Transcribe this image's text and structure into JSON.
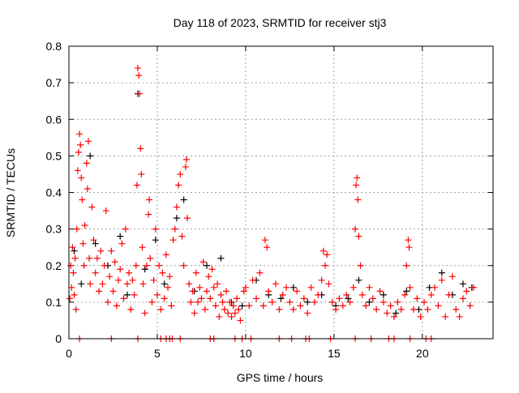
{
  "chart_data": {
    "type": "scatter",
    "title": "Day 118 of 2023, SRMTID for receiver stj3",
    "xlabel": "GPS time / hours",
    "ylabel": "SRMTID / TECUs",
    "xlim": [
      0,
      24
    ],
    "ylim": [
      0,
      0.8
    ],
    "xticks": [
      0,
      5,
      10,
      15,
      20
    ],
    "yticks": [
      0,
      0.1,
      0.2,
      0.3,
      0.4,
      0.5,
      0.6,
      0.7,
      0.8
    ],
    "ytick_labels": [
      "0",
      "0.1",
      "0.2",
      "0.3",
      "0.4",
      "0.5",
      "0.6",
      "0.7",
      "0.8"
    ],
    "grid": true,
    "colors": {
      "primary": "#ff0000",
      "secondary": "#000000"
    },
    "series": [
      {
        "name": "secondary",
        "color": "#000000",
        "points": [
          [
            0.3,
            0.24
          ],
          [
            0.7,
            0.15
          ],
          [
            1.2,
            0.5
          ],
          [
            1.5,
            0.26
          ],
          [
            2.2,
            0.2
          ],
          [
            2.9,
            0.28
          ],
          [
            3.3,
            0.12
          ],
          [
            3.9,
            0.67
          ],
          [
            4.3,
            0.19
          ],
          [
            4.9,
            0.27
          ],
          [
            5.4,
            0.15
          ],
          [
            6.1,
            0.33
          ],
          [
            6.5,
            0.38
          ],
          [
            7.1,
            0.13
          ],
          [
            7.8,
            0.2
          ],
          [
            8.6,
            0.22
          ],
          [
            9.2,
            0.1
          ],
          [
            9.8,
            0.09
          ],
          [
            10.6,
            0.16
          ],
          [
            11.3,
            0.12
          ],
          [
            12.0,
            0.11
          ],
          [
            12.7,
            0.14
          ],
          [
            13.5,
            0.1
          ],
          [
            14.3,
            0.12
          ],
          [
            15.1,
            0.09
          ],
          [
            15.8,
            0.11
          ],
          [
            16.4,
            0.16
          ],
          [
            17.0,
            0.1
          ],
          [
            17.8,
            0.12
          ],
          [
            18.5,
            0.07
          ],
          [
            19.1,
            0.13
          ],
          [
            19.8,
            0.08
          ],
          [
            20.4,
            0.14
          ],
          [
            21.1,
            0.18
          ],
          [
            21.7,
            0.12
          ],
          [
            22.3,
            0.15
          ],
          [
            22.8,
            0.14
          ]
        ]
      },
      {
        "name": "primary",
        "color": "#ff0000",
        "points": [
          [
            0.05,
            0.11
          ],
          [
            0.1,
            0.2
          ],
          [
            0.15,
            0.14
          ],
          [
            0.2,
            0.25
          ],
          [
            0.25,
            0.18
          ],
          [
            0.3,
            0.12
          ],
          [
            0.35,
            0.22
          ],
          [
            0.4,
            0.08
          ],
          [
            0.45,
            0.3
          ],
          [
            0.5,
            0.46
          ],
          [
            0.55,
            0.51
          ],
          [
            0.6,
            0.56
          ],
          [
            0.65,
            0.53
          ],
          [
            0.7,
            0.44
          ],
          [
            0.75,
            0.38
          ],
          [
            0.8,
            0.26
          ],
          [
            0.85,
            0.2
          ],
          [
            0.9,
            0.31
          ],
          [
            1.0,
            0.48
          ],
          [
            1.05,
            0.41
          ],
          [
            1.1,
            0.54
          ],
          [
            1.15,
            0.22
          ],
          [
            1.2,
            0.15
          ],
          [
            1.3,
            0.36
          ],
          [
            1.4,
            0.27
          ],
          [
            1.5,
            0.18
          ],
          [
            1.6,
            0.22
          ],
          [
            1.7,
            0.13
          ],
          [
            1.8,
            0.24
          ],
          [
            1.9,
            0.15
          ],
          [
            2.0,
            0.2
          ],
          [
            2.1,
            0.35
          ],
          [
            2.2,
            0.1
          ],
          [
            2.3,
            0.17
          ],
          [
            2.4,
            0.24
          ],
          [
            2.5,
            0.13
          ],
          [
            2.6,
            0.21
          ],
          [
            2.7,
            0.09
          ],
          [
            2.8,
            0.16
          ],
          [
            2.9,
            0.19
          ],
          [
            3.0,
            0.26
          ],
          [
            3.1,
            0.11
          ],
          [
            3.2,
            0.3
          ],
          [
            3.3,
            0.15
          ],
          [
            3.4,
            0.18
          ],
          [
            3.5,
            0.08
          ],
          [
            3.6,
            0.16
          ],
          [
            3.7,
            0.12
          ],
          [
            3.8,
            0.2
          ],
          [
            3.85,
            0.42
          ],
          [
            3.9,
            0.74
          ],
          [
            3.95,
            0.72
          ],
          [
            4.0,
            0.67
          ],
          [
            4.05,
            0.52
          ],
          [
            4.1,
            0.45
          ],
          [
            4.15,
            0.25
          ],
          [
            4.2,
            0.15
          ],
          [
            4.3,
            0.07
          ],
          [
            4.4,
            0.2
          ],
          [
            4.5,
            0.34
          ],
          [
            4.55,
            0.38
          ],
          [
            4.6,
            0.22
          ],
          [
            4.7,
            0.1
          ],
          [
            4.8,
            0.16
          ],
          [
            4.9,
            0.3
          ],
          [
            5.0,
            0.12
          ],
          [
            5.1,
            0.2
          ],
          [
            5.2,
            0.08
          ],
          [
            5.3,
            0.18
          ],
          [
            5.4,
            0.11
          ],
          [
            5.5,
            0.23
          ],
          [
            5.6,
            0.14
          ],
          [
            5.7,
            0.17
          ],
          [
            5.8,
            0.09
          ],
          [
            5.9,
            0.27
          ],
          [
            6.0,
            0.3
          ],
          [
            6.1,
            0.36
          ],
          [
            6.2,
            0.42
          ],
          [
            6.3,
            0.45
          ],
          [
            6.4,
            0.28
          ],
          [
            6.5,
            0.2
          ],
          [
            6.6,
            0.47
          ],
          [
            6.65,
            0.49
          ],
          [
            6.7,
            0.33
          ],
          [
            6.8,
            0.15
          ],
          [
            6.9,
            0.1
          ],
          [
            7.0,
            0.13
          ],
          [
            7.1,
            0.07
          ],
          [
            7.2,
            0.18
          ],
          [
            7.3,
            0.1
          ],
          [
            7.4,
            0.14
          ],
          [
            7.5,
            0.11
          ],
          [
            7.6,
            0.21
          ],
          [
            7.7,
            0.08
          ],
          [
            7.8,
            0.13
          ],
          [
            7.9,
            0.17
          ],
          [
            8.0,
            0.11
          ],
          [
            8.1,
            0.19
          ],
          [
            8.2,
            0.14
          ],
          [
            8.3,
            0.09
          ],
          [
            8.4,
            0.15
          ],
          [
            8.5,
            0.06
          ],
          [
            8.6,
            0.12
          ],
          [
            8.7,
            0.1
          ],
          [
            8.8,
            0.08
          ],
          [
            8.9,
            0.13
          ],
          [
            9.0,
            0.07
          ],
          [
            9.1,
            0.1
          ],
          [
            9.2,
            0.06
          ],
          [
            9.3,
            0.09
          ],
          [
            9.4,
            0.07
          ],
          [
            9.5,
            0.11
          ],
          [
            9.6,
            0.08
          ],
          [
            9.7,
            0.05
          ],
          [
            9.9,
            0.13
          ],
          [
            10.0,
            0.14
          ],
          [
            10.2,
            0.09
          ],
          [
            10.4,
            0.16
          ],
          [
            10.6,
            0.11
          ],
          [
            10.8,
            0.18
          ],
          [
            11.0,
            0.09
          ],
          [
            11.1,
            0.27
          ],
          [
            11.2,
            0.25
          ],
          [
            11.3,
            0.13
          ],
          [
            11.5,
            0.1
          ],
          [
            11.7,
            0.15
          ],
          [
            11.9,
            0.08
          ],
          [
            12.1,
            0.12
          ],
          [
            12.3,
            0.14
          ],
          [
            12.5,
            0.1
          ],
          [
            12.7,
            0.08
          ],
          [
            12.9,
            0.13
          ],
          [
            13.1,
            0.09
          ],
          [
            13.3,
            0.11
          ],
          [
            13.5,
            0.07
          ],
          [
            13.7,
            0.14
          ],
          [
            13.9,
            0.1
          ],
          [
            14.1,
            0.12
          ],
          [
            14.3,
            0.16
          ],
          [
            14.4,
            0.24
          ],
          [
            14.5,
            0.2
          ],
          [
            14.6,
            0.23
          ],
          [
            14.7,
            0.15
          ],
          [
            14.9,
            0.1
          ],
          [
            15.1,
            0.08
          ],
          [
            15.3,
            0.11
          ],
          [
            15.5,
            0.09
          ],
          [
            15.7,
            0.12
          ],
          [
            15.9,
            0.1
          ],
          [
            16.1,
            0.14
          ],
          [
            16.2,
            0.3
          ],
          [
            16.25,
            0.42
          ],
          [
            16.3,
            0.44
          ],
          [
            16.35,
            0.38
          ],
          [
            16.4,
            0.28
          ],
          [
            16.5,
            0.2
          ],
          [
            16.6,
            0.12
          ],
          [
            16.8,
            0.09
          ],
          [
            17.0,
            0.14
          ],
          [
            17.2,
            0.11
          ],
          [
            17.4,
            0.08
          ],
          [
            17.6,
            0.13
          ],
          [
            17.8,
            0.1
          ],
          [
            18.0,
            0.07
          ],
          [
            18.2,
            0.09
          ],
          [
            18.4,
            0.06
          ],
          [
            18.6,
            0.1
          ],
          [
            18.8,
            0.08
          ],
          [
            19.0,
            0.12
          ],
          [
            19.1,
            0.2
          ],
          [
            19.2,
            0.27
          ],
          [
            19.25,
            0.25
          ],
          [
            19.3,
            0.14
          ],
          [
            19.5,
            0.08
          ],
          [
            19.7,
            0.11
          ],
          [
            19.9,
            0.06
          ],
          [
            20.1,
            0.1
          ],
          [
            20.3,
            0.08
          ],
          [
            20.5,
            0.12
          ],
          [
            20.7,
            0.14
          ],
          [
            20.9,
            0.09
          ],
          [
            21.1,
            0.16
          ],
          [
            21.3,
            0.06
          ],
          [
            21.5,
            0.12
          ],
          [
            21.7,
            0.17
          ],
          [
            21.9,
            0.08
          ],
          [
            22.1,
            0.06
          ],
          [
            22.3,
            0.11
          ],
          [
            22.5,
            0.13
          ],
          [
            22.7,
            0.09
          ],
          [
            22.9,
            0.14
          ]
        ]
      },
      {
        "name": "zero-markers",
        "color": "#ff0000",
        "points": [
          [
            0.6,
            0
          ],
          [
            2.4,
            0
          ],
          [
            3.9,
            0
          ],
          [
            5.2,
            0
          ],
          [
            5.5,
            0
          ],
          [
            5.7,
            0
          ],
          [
            5.85,
            0
          ],
          [
            6.3,
            0
          ],
          [
            8.0,
            0
          ],
          [
            8.2,
            0
          ],
          [
            9.4,
            0
          ],
          [
            9.8,
            0
          ],
          [
            10.3,
            0
          ],
          [
            11.9,
            0
          ],
          [
            12.6,
            0
          ],
          [
            13.4,
            0
          ],
          [
            13.6,
            0
          ],
          [
            14.8,
            0
          ],
          [
            16.2,
            0
          ],
          [
            17.1,
            0
          ],
          [
            18.1,
            0
          ],
          [
            18.4,
            0
          ],
          [
            19.3,
            0
          ],
          [
            20.2,
            0
          ],
          [
            20.5,
            0
          ]
        ]
      }
    ]
  }
}
